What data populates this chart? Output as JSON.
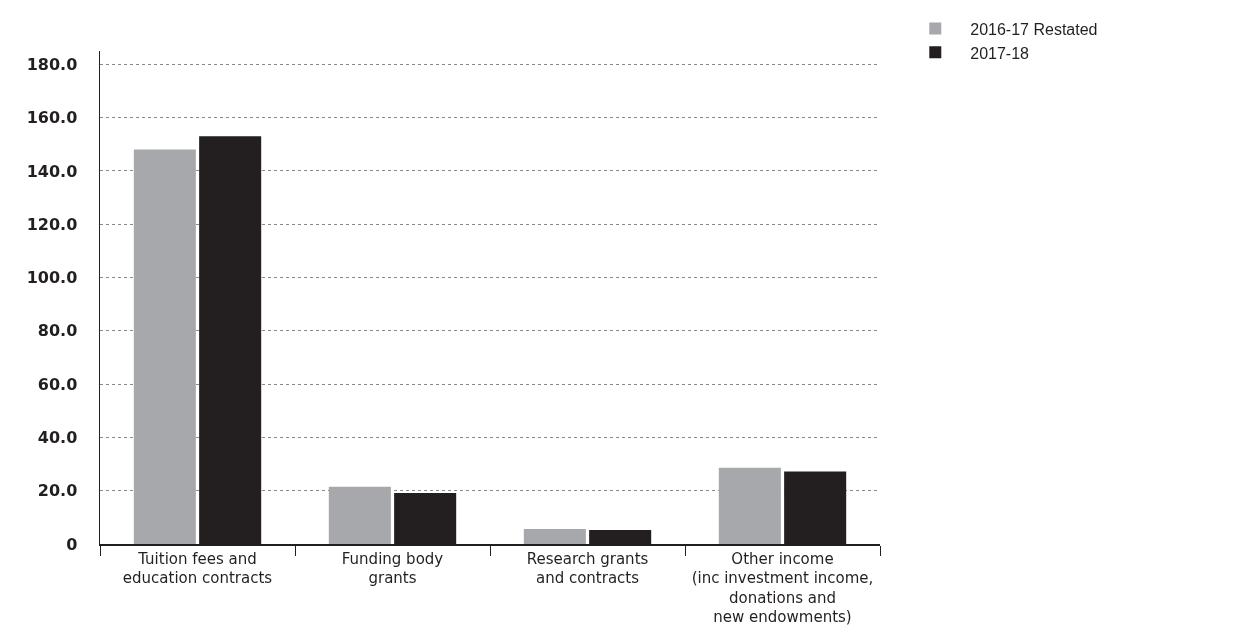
{
  "chart_data": {
    "type": "bar",
    "categories": [
      "Tuition fees and\neducation contracts",
      "Funding body\ngrants",
      "Research grants\nand contracts",
      "Other income\n(inc investment income,\ndonations and\nnew endowments)"
    ],
    "series": [
      {
        "name": "2016-17 Restated",
        "color": "#a7a8ab",
        "values": [
          148,
          21.5,
          5.6,
          28.6
        ]
      },
      {
        "name": "2017-18",
        "color": "#231f20",
        "values": [
          153,
          19.1,
          5.3,
          27.2
        ]
      }
    ],
    "ylim": [
      0,
      185
    ],
    "yticks": [
      {
        "value": 0,
        "label": "0"
      },
      {
        "value": 20,
        "label": "20.0"
      },
      {
        "value": 40,
        "label": "40.0"
      },
      {
        "value": 60,
        "label": "60.0"
      },
      {
        "value": 80,
        "label": "80.0"
      },
      {
        "value": 100,
        "label": "100.0"
      },
      {
        "value": 120,
        "label": "120.0"
      },
      {
        "value": 140,
        "label": "140.0"
      },
      {
        "value": 160,
        "label": "160.0"
      },
      {
        "value": 180,
        "label": "180.0"
      }
    ],
    "grid": "y",
    "legend": "top right"
  }
}
